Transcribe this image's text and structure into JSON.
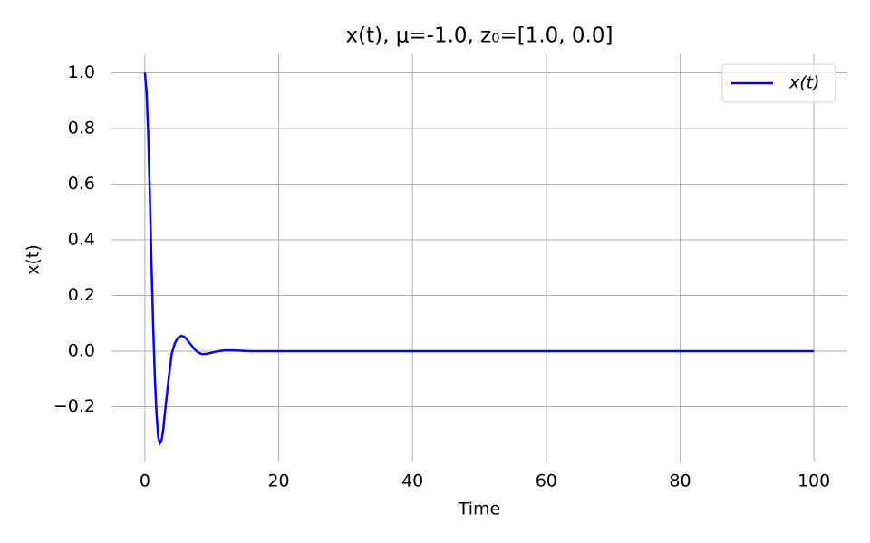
{
  "chart_data": {
    "type": "line",
    "title": "x(t), μ=-1.0, z₀=[1.0, 0.0]",
    "x_label": "Time",
    "y_label": "x(t)",
    "x": [
      0,
      0.25,
      0.5,
      0.75,
      1,
      1.25,
      1.5,
      1.75,
      2,
      2.25,
      2.5,
      2.75,
      3,
      3.5,
      4,
      4.5,
      5,
      5.5,
      6,
      6.5,
      7,
      7.5,
      8,
      8.5,
      9,
      9.5,
      10,
      11,
      12,
      13,
      14,
      15,
      16,
      20,
      40,
      60,
      80,
      100
    ],
    "series": [
      {
        "name": "x(t)",
        "color": "#0000ff",
        "values": [
          1.0,
          0.93,
          0.78,
          0.55,
          0.3,
          0.08,
          -0.1,
          -0.23,
          -0.31,
          -0.33,
          -0.32,
          -0.28,
          -0.22,
          -0.11,
          -0.01,
          0.03,
          0.05,
          0.055,
          0.05,
          0.035,
          0.02,
          0.005,
          -0.005,
          -0.01,
          -0.01,
          -0.008,
          -0.005,
          0,
          0.003,
          0.003,
          0.002,
          0.001,
          0,
          0,
          0,
          0,
          0,
          0
        ]
      }
    ],
    "xlim": [
      -5,
      105
    ],
    "xticks": [
      0,
      20,
      40,
      60,
      80,
      100
    ],
    "ylim": [
      -0.3965,
      1.0665
    ],
    "yticks": [
      {
        "value": -0.2,
        "label": "−0.2"
      },
      {
        "value": 0,
        "label": "0.0"
      },
      0.2,
      0.4,
      0.6,
      0.8,
      {
        "value": 1,
        "label": "1.0"
      }
    ],
    "grid": true,
    "legend": "upper right"
  }
}
